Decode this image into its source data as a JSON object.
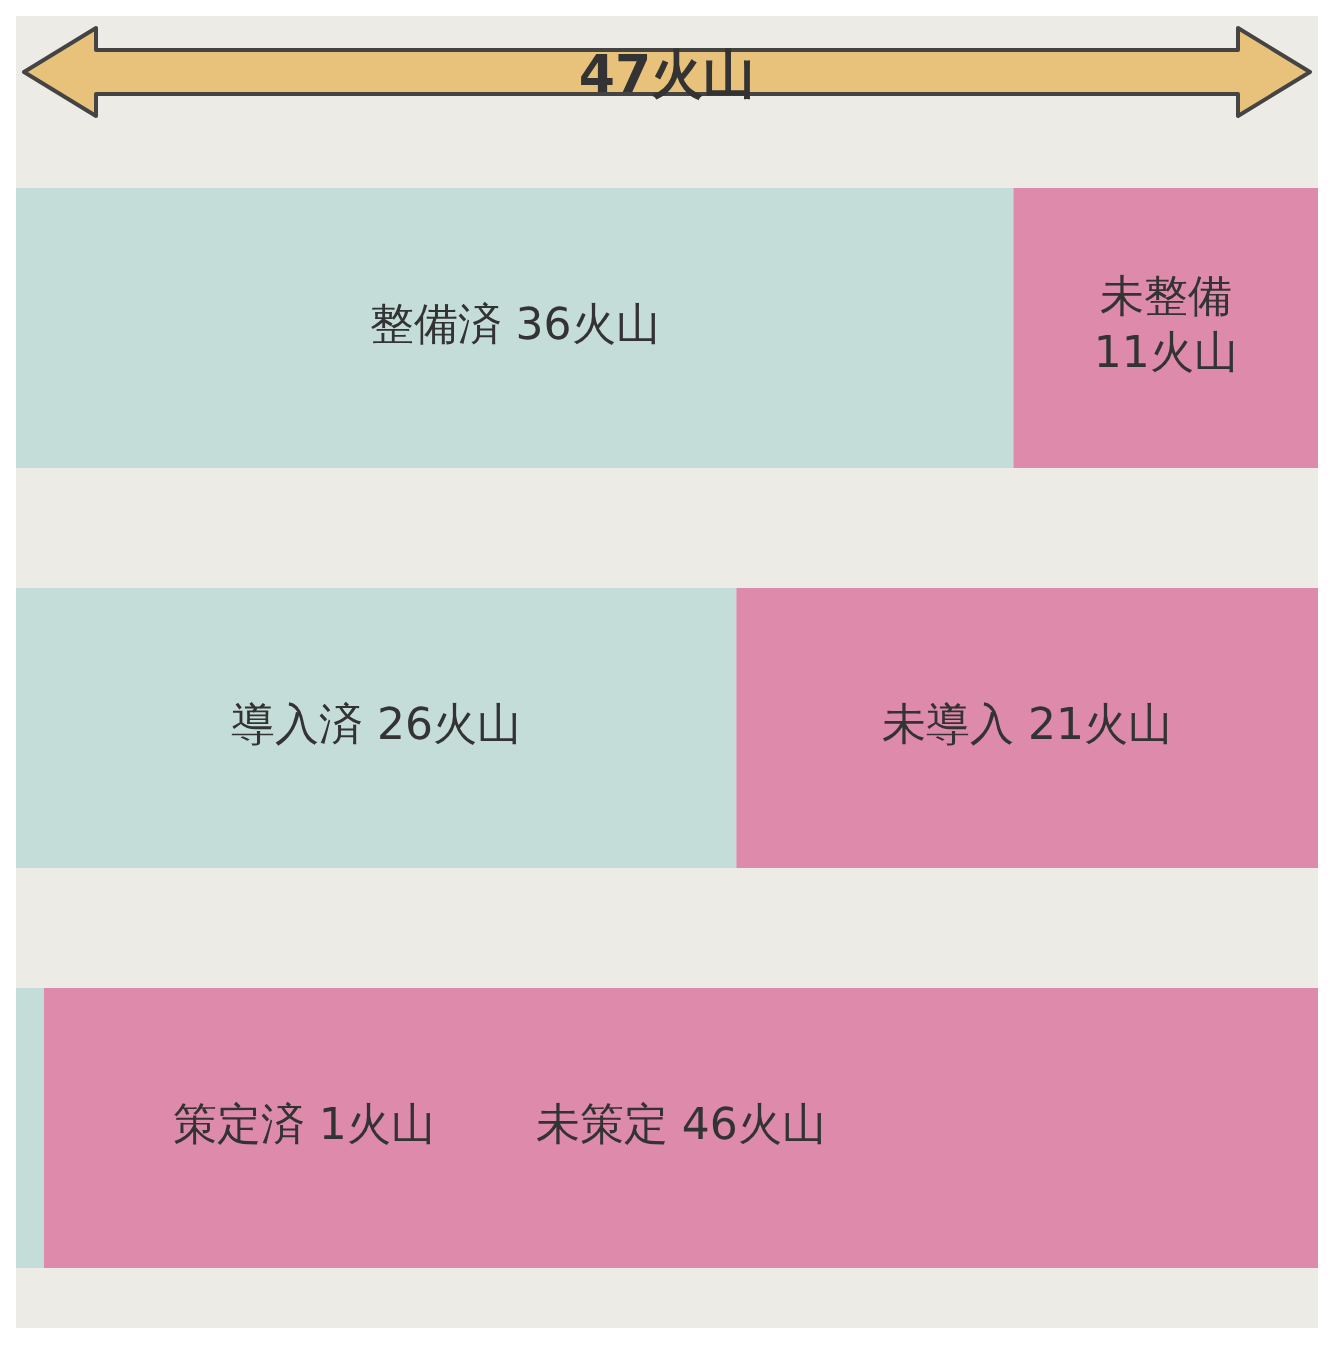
{
  "chart_data": {
    "type": "bar",
    "title": "47火山",
    "orientation": "horizontal",
    "stacked": true,
    "categories": [
      null,
      null,
      null
    ],
    "xlim": [
      0,
      47
    ],
    "tick_labels": false,
    "legend": false,
    "series": [
      {
        "color": "#c5ddd9",
        "values": [
          36,
          26,
          1
        ],
        "value_labels": [
          "整備済 36火山",
          "導入済 26火山",
          "策定済 1火山"
        ]
      },
      {
        "color": "#de8aab",
        "values": [
          11,
          21,
          46
        ],
        "value_labels": [
          "未整備 11火山",
          "未導入 21火山",
          "未策定 46火山"
        ]
      }
    ]
  }
}
